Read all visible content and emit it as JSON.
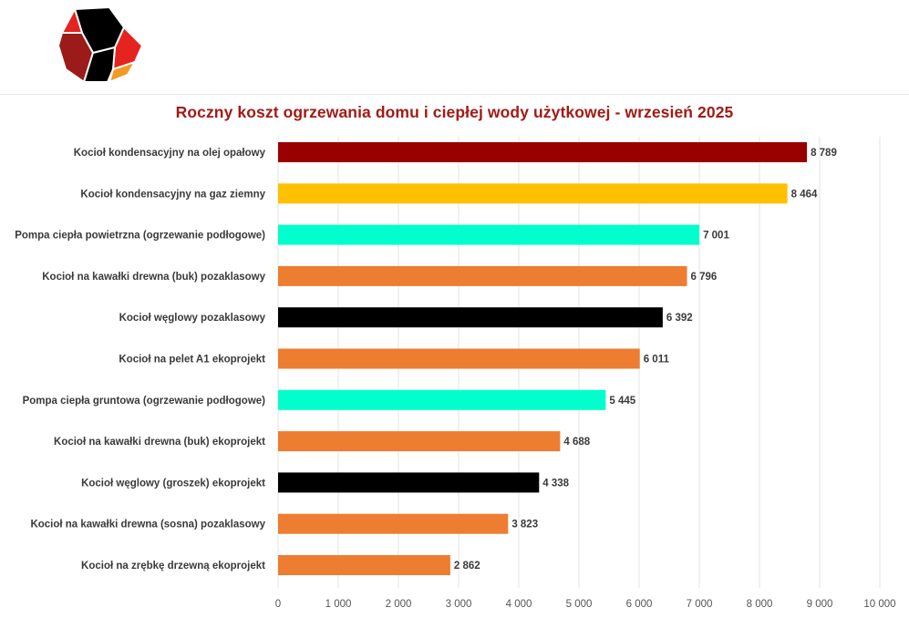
{
  "logo": {
    "icon": "hexagon-logo-icon",
    "colors": [
      "#000000",
      "#e52420",
      "#9b1b1b",
      "#f29a25"
    ]
  },
  "chart_data": {
    "type": "bar",
    "orientation": "horizontal",
    "title": "Roczny koszt ogrzewania domu i ciepłej wody użytkowej - wrzesień 2025",
    "categories": [
      "Kocioł kondensacyjny na olej opałowy",
      "Kocioł kondensacyjny na gaz ziemny",
      "Pompa ciepła powietrzna (ogrzewanie podłogowe)",
      "Kocioł na kawałki drewna (buk) pozaklasowy",
      "Kocioł węglowy pozaklasowy",
      "Kocioł na pelet A1 ekoprojekt",
      "Pompa ciepła gruntowa (ogrzewanie podłogowe)",
      "Kocioł na kawałki drewna (buk) ekoprojekt",
      "Kocioł węglowy (groszek) ekoprojekt",
      "Kocioł na kawałki drewna (sosna) pozaklasowy",
      "Kocioł na zrębkę drzewną ekoprojekt"
    ],
    "values": [
      8789,
      8464,
      7001,
      6796,
      6392,
      6011,
      5445,
      4688,
      4338,
      3823,
      2862
    ],
    "value_labels": [
      "8 789",
      "8 464",
      "7 001",
      "6 796",
      "6 392",
      "6 011",
      "5 445",
      "4 688",
      "4 338",
      "3 823",
      "2 862"
    ],
    "colors": [
      "#990000",
      "#ffc000",
      "#00ffcc",
      "#ed7d31",
      "#000000",
      "#ed7d31",
      "#00ffcc",
      "#ed7d31",
      "#000000",
      "#ed7d31",
      "#ed7d31"
    ],
    "xlim": [
      0,
      10000
    ],
    "xticks": [
      0,
      1000,
      2000,
      3000,
      4000,
      5000,
      6000,
      7000,
      8000,
      9000,
      10000
    ],
    "xtick_labels": [
      "0",
      "1 000",
      "2 000",
      "3 000",
      "4 000",
      "5 000",
      "6 000",
      "7 000",
      "8 000",
      "9 000",
      "10 000"
    ],
    "grid": true,
    "xlabel": "",
    "ylabel": ""
  }
}
